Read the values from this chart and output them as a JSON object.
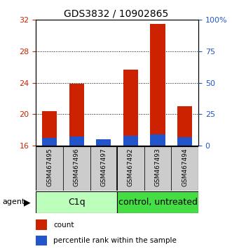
{
  "title": "GDS3832 / 10902865",
  "samples": [
    "GSM467495",
    "GSM467496",
    "GSM467497",
    "GSM467492",
    "GSM467493",
    "GSM467494"
  ],
  "count_values": [
    20.4,
    23.9,
    16.3,
    25.7,
    31.5,
    21.0
  ],
  "percentile_values": [
    17.0,
    17.2,
    16.8,
    17.3,
    17.4,
    17.1
  ],
  "bar_base": 16.0,
  "ylim_left": [
    16,
    32
  ],
  "yticks_left": [
    16,
    20,
    24,
    28,
    32
  ],
  "yticks_right": [
    0,
    25,
    50,
    75,
    100
  ],
  "ytick_labels_right": [
    "0",
    "25",
    "50",
    "75",
    "100%"
  ],
  "count_color": "#cc2200",
  "percentile_color": "#2255cc",
  "bar_width": 0.55,
  "left_color": "#cc2200",
  "right_color": "#2255cc",
  "c1q_color": "#bbffbb",
  "control_color": "#44dd44",
  "sample_bg": "#cccccc",
  "title_fontsize": 10,
  "tick_fontsize": 8,
  "sample_fontsize": 6.5,
  "group_fontsize": 9,
  "legend_fontsize": 7.5
}
